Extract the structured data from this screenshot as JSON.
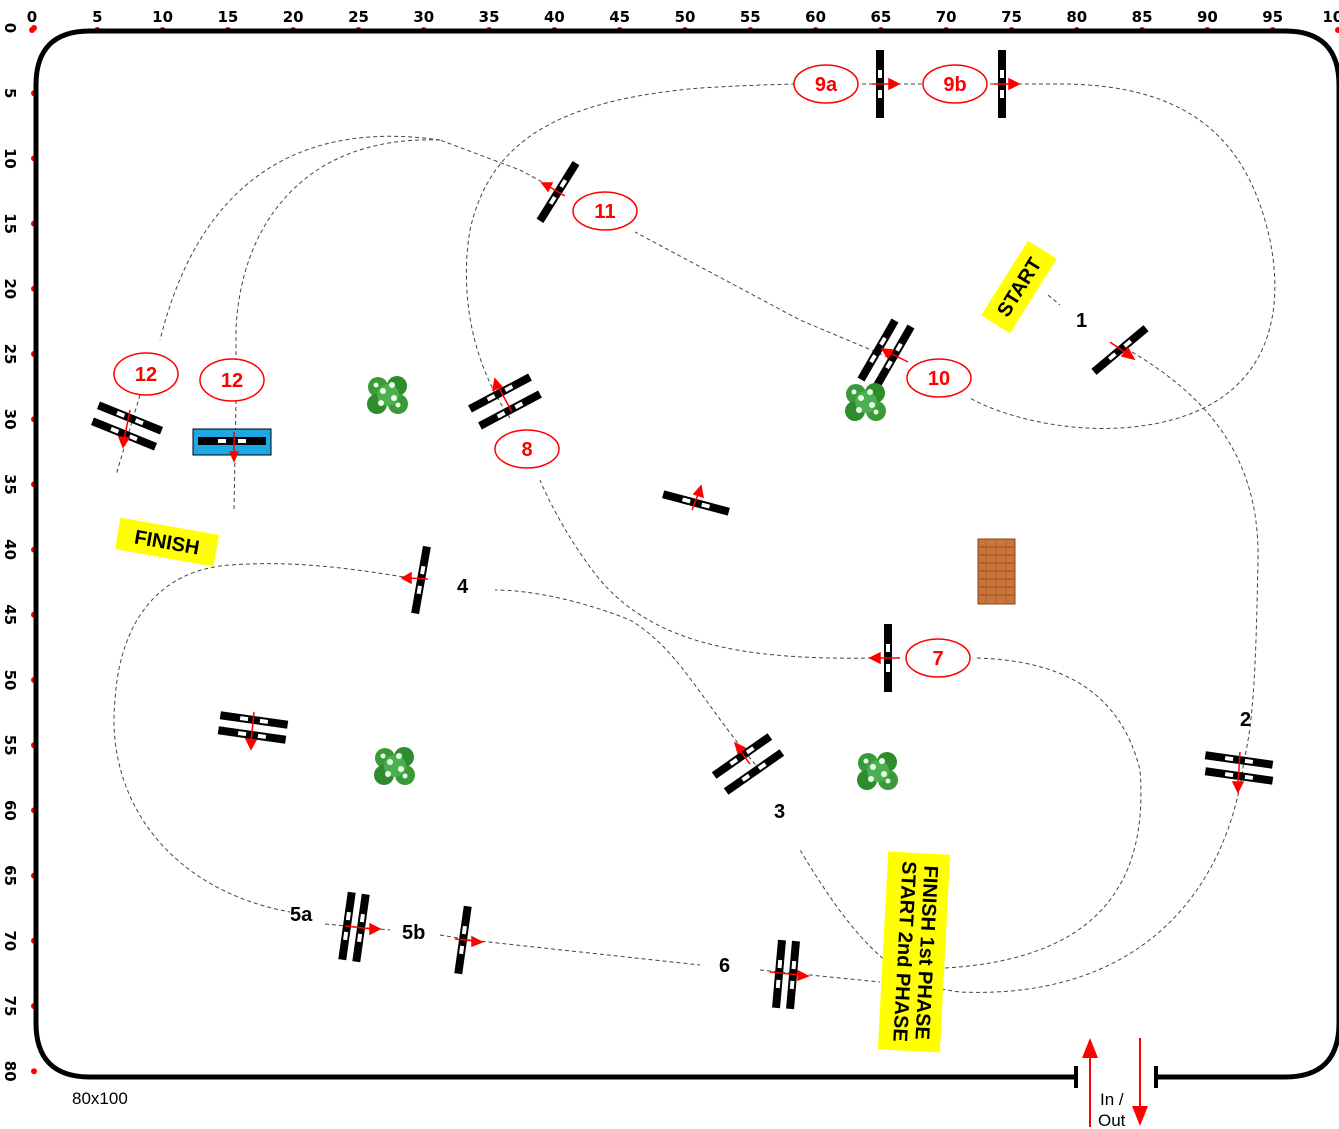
{
  "arena": {
    "size_label": "80x100",
    "gate_label_line1": "In /",
    "gate_label_line2": "Out"
  },
  "axis": {
    "x_ticks": [
      "0",
      "5",
      "10",
      "15",
      "20",
      "25",
      "30",
      "35",
      "40",
      "45",
      "50",
      "55",
      "60",
      "65",
      "70",
      "75",
      "80",
      "85",
      "90",
      "95",
      "100"
    ],
    "y_ticks": [
      "0",
      "5",
      "10",
      "15",
      "20",
      "25",
      "30",
      "35",
      "40",
      "45",
      "50",
      "55",
      "60",
      "65",
      "70",
      "75",
      "80"
    ]
  },
  "signs": {
    "start": "START",
    "finish": "FINISH",
    "phase_line1": "FINISH 1st PHASE",
    "phase_line2": "START 2nd PHASE"
  },
  "obstacles": {
    "o1": "1",
    "o2": "2",
    "o3": "3",
    "o4": "4",
    "o5a": "5a",
    "o5b": "5b",
    "o6": "6",
    "o7": "7",
    "o8": "8",
    "o9a": "9a",
    "o9b": "9b",
    "o10": "10",
    "o11": "11",
    "o12a": "12",
    "o12b": "12"
  },
  "colors": {
    "label_red": "#ff0000",
    "sign_yellow": "#ffff00",
    "water_blue": "#1ca9e6",
    "wall_brown": "#c8743a",
    "bush_green": "#2e8b2e"
  }
}
